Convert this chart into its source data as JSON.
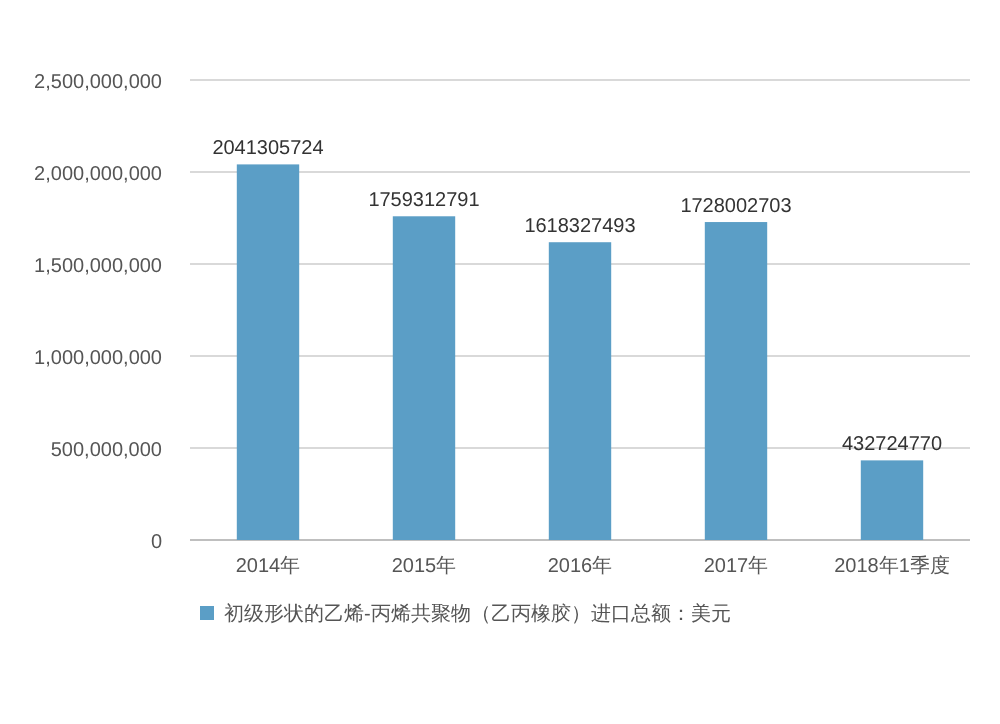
{
  "chart_data": {
    "type": "bar",
    "categories": [
      "2014年",
      "2015年",
      "2016年",
      "2017年",
      "2018年1季度"
    ],
    "series": [
      {
        "name": "初级形状的乙烯-丙烯共聚物（乙丙橡胶）进口总额：美元",
        "color": "#5b9ec6",
        "values": [
          2041305724,
          1759312791,
          1618327493,
          1728002703,
          432724770
        ]
      }
    ],
    "ylim": [
      0,
      2500000000
    ],
    "yticks": [
      {
        "value": 0,
        "label": "0"
      },
      {
        "value": 500000000,
        "label": "500,000,000"
      },
      {
        "value": 1000000000,
        "label": "1,000,000,000"
      },
      {
        "value": 1500000000,
        "label": "1,500,000,000"
      },
      {
        "value": 2000000000,
        "label": "2,000,000,000"
      },
      {
        "value": 2500000000,
        "label": "2,500,000,000"
      }
    ],
    "grid": "y",
    "data_labels": true,
    "legend": "bottom"
  }
}
